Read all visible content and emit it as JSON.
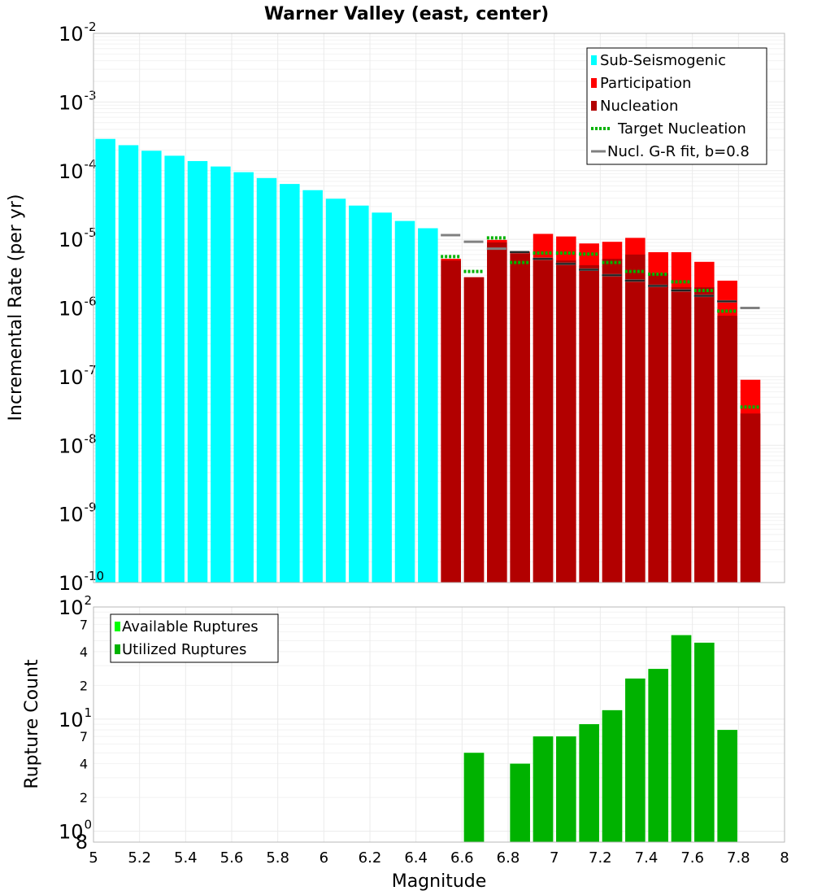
{
  "chart_data": [
    {
      "type": "bar",
      "title": "Warner Valley (east, center)",
      "xlabel": "",
      "ylabel": "Incremental Rate (per yr)",
      "xlim": [
        5,
        8
      ],
      "yscale": "log",
      "ylim": [
        1e-10,
        0.01
      ],
      "y_tick_mantissa": "10",
      "y_ticks": [
        {
          "value": 1e-10,
          "exp": "-10"
        },
        {
          "value": 1e-09,
          "exp": "-9"
        },
        {
          "value": 1e-08,
          "exp": "-8"
        },
        {
          "value": 1e-07,
          "exp": "-7"
        },
        {
          "value": 1e-06,
          "exp": "-6"
        },
        {
          "value": 1e-05,
          "exp": "-5"
        },
        {
          "value": 0.0001,
          "exp": "-4"
        },
        {
          "value": 0.001,
          "exp": "-3"
        },
        {
          "value": 0.01,
          "exp": "-2"
        }
      ],
      "legend": {
        "position": "top-right",
        "entries": [
          {
            "label": "Sub-Seismogenic",
            "color": "#00ffff",
            "style": "bar"
          },
          {
            "label": "Participation",
            "color": "#ff0000",
            "style": "bar"
          },
          {
            "label": "Nucleation",
            "color": "#b20000",
            "style": "bar"
          },
          {
            "label": "Target Nucleation",
            "color": "#00b200",
            "style": "dotted"
          },
          {
            "label": "Nucl. G-R fit, b=0.8",
            "color": "#808080",
            "style": "line"
          }
        ]
      },
      "series": [
        {
          "name": "Sub-Seismogenic",
          "color": "#00ffff",
          "style": "bar",
          "x": [
            5.05,
            5.15,
            5.25,
            5.35,
            5.45,
            5.55,
            5.65,
            5.75,
            5.85,
            5.95,
            6.05,
            6.15,
            6.25,
            6.35,
            6.45
          ],
          "values": [
            0.00029,
            0.000235,
            0.000195,
            0.000165,
            0.000138,
            0.000115,
            9.5e-05,
            7.8e-05,
            6.4e-05,
            5.2e-05,
            3.9e-05,
            3.1e-05,
            2.45e-05,
            1.85e-05,
            1.45e-05
          ]
        },
        {
          "name": "Participation",
          "color": "#ff0000",
          "style": "bar",
          "x": [
            6.55,
            6.65,
            6.75,
            6.85,
            6.95,
            7.05,
            7.15,
            7.25,
            7.35,
            7.45,
            7.55,
            7.65,
            7.75,
            7.85
          ],
          "values": [
            5.2e-06,
            2.8e-06,
            9.8e-06,
            6.6e-06,
            1.2e-05,
            1.1e-05,
            8.7e-06,
            9.2e-06,
            1.05e-05,
            6.5e-06,
            6.5e-06,
            4.7e-06,
            2.5e-06,
            9e-08
          ]
        },
        {
          "name": "Nucleation",
          "color": "#b20000",
          "style": "bar",
          "x": [
            6.55,
            6.65,
            6.75,
            6.85,
            6.95,
            7.05,
            7.15,
            7.25,
            7.35,
            7.45,
            7.55,
            7.65,
            7.75,
            7.85
          ],
          "values": [
            4.9e-06,
            2.8e-06,
            9e-06,
            6.2e-06,
            5.3e-06,
            4.9e-06,
            4.2e-06,
            5.2e-06,
            6e-06,
            3.2e-06,
            2e-06,
            2e-06,
            7.7e-07,
            2.9e-08
          ]
        },
        {
          "name": "Target Nucleation",
          "color": "#00b200",
          "style": "dotted",
          "x": [
            6.55,
            6.65,
            6.75,
            6.85,
            6.95,
            7.05,
            7.15,
            7.25,
            7.35,
            7.45,
            7.55,
            7.65,
            7.75,
            7.85
          ],
          "values": [
            5.6e-06,
            3.4e-06,
            1.05e-05,
            4.6e-06,
            6.3e-06,
            6.3e-06,
            6.1e-06,
            4.6e-06,
            3.4e-06,
            3.1e-06,
            2.4e-06,
            1.8e-06,
            9e-07,
            3.6e-08
          ]
        },
        {
          "name": "Nucl. G-R fit, b=0.8",
          "color": "#808080",
          "style": "line",
          "x": [
            6.55,
            6.65,
            6.75,
            6.85,
            6.95,
            7.05,
            7.15,
            7.25,
            7.35,
            7.45,
            7.55,
            7.65,
            7.75,
            7.85
          ],
          "values": [
            1.15e-05,
            9.2e-06,
            7.3e-06,
            6.5e-06,
            5.2e-06,
            4.4e-06,
            3.6e-06,
            3e-06,
            2.5e-06,
            2.1e-06,
            1.8e-06,
            1.5e-06,
            1.25e-06,
            1e-06
          ]
        },
        {
          "name": "Nucleation G-R marker",
          "color": "#000000",
          "style": "line",
          "x": [
            6.85,
            6.95,
            7.05,
            7.15,
            7.25,
            7.35,
            7.45,
            7.55,
            7.65,
            7.75
          ],
          "values": [
            6.5e-06,
            5.2e-06,
            4.4e-06,
            3.6e-06,
            3e-06,
            2.5e-06,
            2.1e-06,
            1.8e-06,
            1.5e-06,
            1.25e-06
          ]
        }
      ]
    },
    {
      "type": "bar",
      "title": "",
      "xlabel": "Magnitude",
      "ylabel": "Rupture Count",
      "xlim": [
        5,
        8
      ],
      "yscale": "log",
      "ylim": [
        0.8,
        100
      ],
      "x_ticks": [
        "5",
        "5.2",
        "5.4",
        "5.6",
        "5.8",
        "6",
        "6.2",
        "6.4",
        "6.6",
        "6.8",
        "7",
        "7.2",
        "7.4",
        "7.6",
        "7.8",
        "8"
      ],
      "y_major_ticks": [
        {
          "value": 1,
          "mantissa": "10",
          "exp": "0"
        },
        {
          "value": 10,
          "mantissa": "10",
          "exp": "1"
        },
        {
          "value": 100,
          "mantissa": "10",
          "exp": "2"
        }
      ],
      "y_minor_ticks": [
        {
          "value": 0.8,
          "label": "8"
        },
        {
          "value": 2,
          "label": "2"
        },
        {
          "value": 4,
          "label": "4"
        },
        {
          "value": 7,
          "label": "7"
        },
        {
          "value": 20,
          "label": "2"
        },
        {
          "value": 40,
          "label": "4"
        },
        {
          "value": 70,
          "label": "7"
        }
      ],
      "legend": {
        "position": "top-left",
        "entries": [
          {
            "label": "Available Ruptures",
            "color": "#00ff00",
            "style": "bar"
          },
          {
            "label": "Utilized Ruptures",
            "color": "#00b200",
            "style": "bar"
          }
        ]
      },
      "series": [
        {
          "name": "Available Ruptures",
          "color": "#00ff00",
          "style": "bar",
          "x": [
            6.65,
            6.85,
            6.95,
            7.05,
            7.15,
            7.25,
            7.35,
            7.45,
            7.55,
            7.65,
            7.75
          ],
          "values": [
            5,
            4,
            7,
            7,
            9,
            12,
            23,
            28,
            56,
            48,
            8
          ]
        },
        {
          "name": "Utilized Ruptures",
          "color": "#00b200",
          "style": "bar",
          "x": [
            6.65,
            6.85,
            6.95,
            7.05,
            7.15,
            7.25,
            7.35,
            7.45,
            7.55,
            7.65,
            7.75
          ],
          "values": [
            5,
            4,
            7,
            7,
            9,
            12,
            23,
            28,
            56,
            48,
            8
          ]
        }
      ]
    }
  ]
}
